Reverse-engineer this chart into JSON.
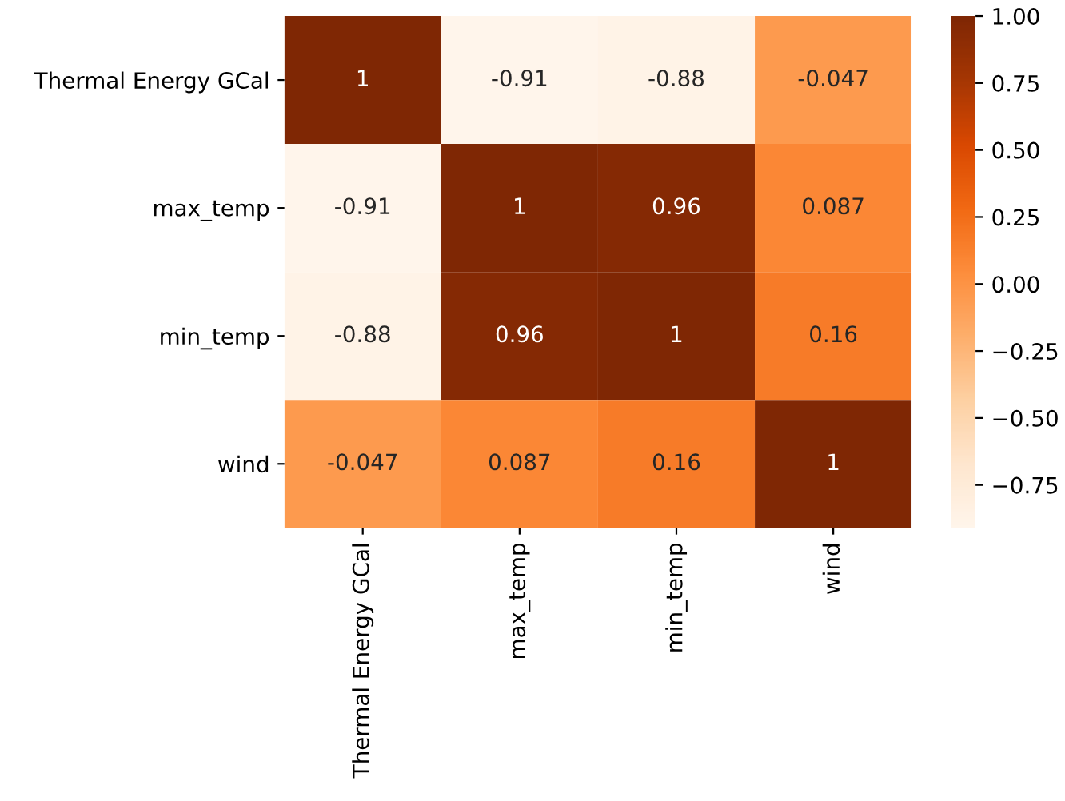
{
  "chart_data": {
    "type": "heatmap",
    "categories": [
      "Thermal Energy GCal",
      "max_temp",
      "min_temp",
      "wind"
    ],
    "y_categories": [
      "Thermal Energy GCal",
      "max_temp",
      "min_temp",
      "wind"
    ],
    "cells": [
      [
        1,
        -0.91,
        -0.88,
        -0.047
      ],
      [
        -0.91,
        1,
        0.96,
        0.087
      ],
      [
        -0.88,
        0.96,
        1,
        0.16
      ],
      [
        -0.047,
        0.087,
        0.16,
        1
      ]
    ],
    "data_labels": true,
    "clim": [
      -0.91,
      1
    ],
    "cticks": [
      {
        "value": -0.75,
        "label": "−0.75"
      },
      {
        "value": -0.5,
        "label": "−0.50"
      },
      {
        "value": -0.25,
        "label": "−0.25"
      },
      {
        "value": 0,
        "label": "0.00"
      },
      {
        "value": 0.25,
        "label": "0.25"
      },
      {
        "value": 0.5,
        "label": "0.50"
      },
      {
        "value": 0.75,
        "label": "0.75"
      },
      {
        "value": 1,
        "label": "1.00"
      }
    ]
  }
}
